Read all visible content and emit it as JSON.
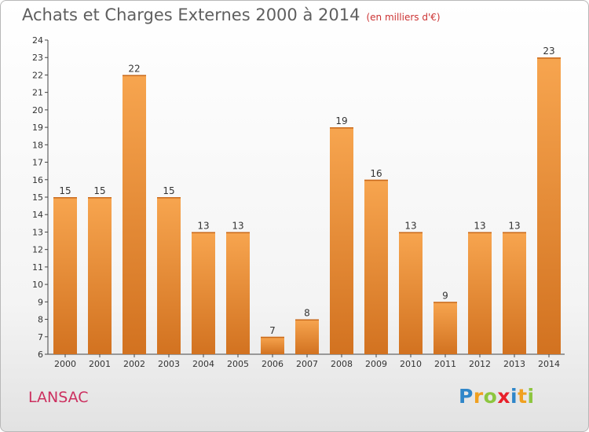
{
  "header": {
    "title": "Achats et Charges Externes 2000 à 2014",
    "subtitle": "(en milliers d'€)"
  },
  "footer": {
    "commune": "LANSAC",
    "logo_text": "Proxiti",
    "logo_letters": [
      {
        "ch": "P",
        "color": "#2f86c9"
      },
      {
        "ch": "r",
        "color": "#f0a020"
      },
      {
        "ch": "o",
        "color": "#8dc63f"
      },
      {
        "ch": "x",
        "color": "#e8202a"
      },
      {
        "ch": "i",
        "color": "#2f86c9"
      },
      {
        "ch": "t",
        "color": "#f0a020"
      },
      {
        "ch": "i",
        "color": "#8dc63f"
      }
    ]
  },
  "colors": {
    "bar_light": "#f7a54f",
    "bar_dark": "#d27220",
    "axis": "#444444",
    "text": "#333333"
  },
  "chart_data": {
    "type": "bar",
    "categories": [
      "2000",
      "2001",
      "2002",
      "2003",
      "2004",
      "2005",
      "2006",
      "2007",
      "2008",
      "2009",
      "2010",
      "2011",
      "2012",
      "2013",
      "2014"
    ],
    "values": [
      15,
      15,
      22,
      15,
      13,
      13,
      7,
      8,
      19,
      16,
      13,
      9,
      13,
      13,
      23
    ],
    "title": "Achats et Charges Externes 2000 à 2014",
    "unit": "(en milliers d'€)",
    "ylim": [
      6,
      24
    ],
    "yticks": [
      6,
      7,
      8,
      9,
      10,
      11,
      12,
      13,
      14,
      15,
      16,
      17,
      18,
      19,
      20,
      21,
      22,
      23,
      24
    ],
    "grid": false,
    "data_labels": true
  }
}
